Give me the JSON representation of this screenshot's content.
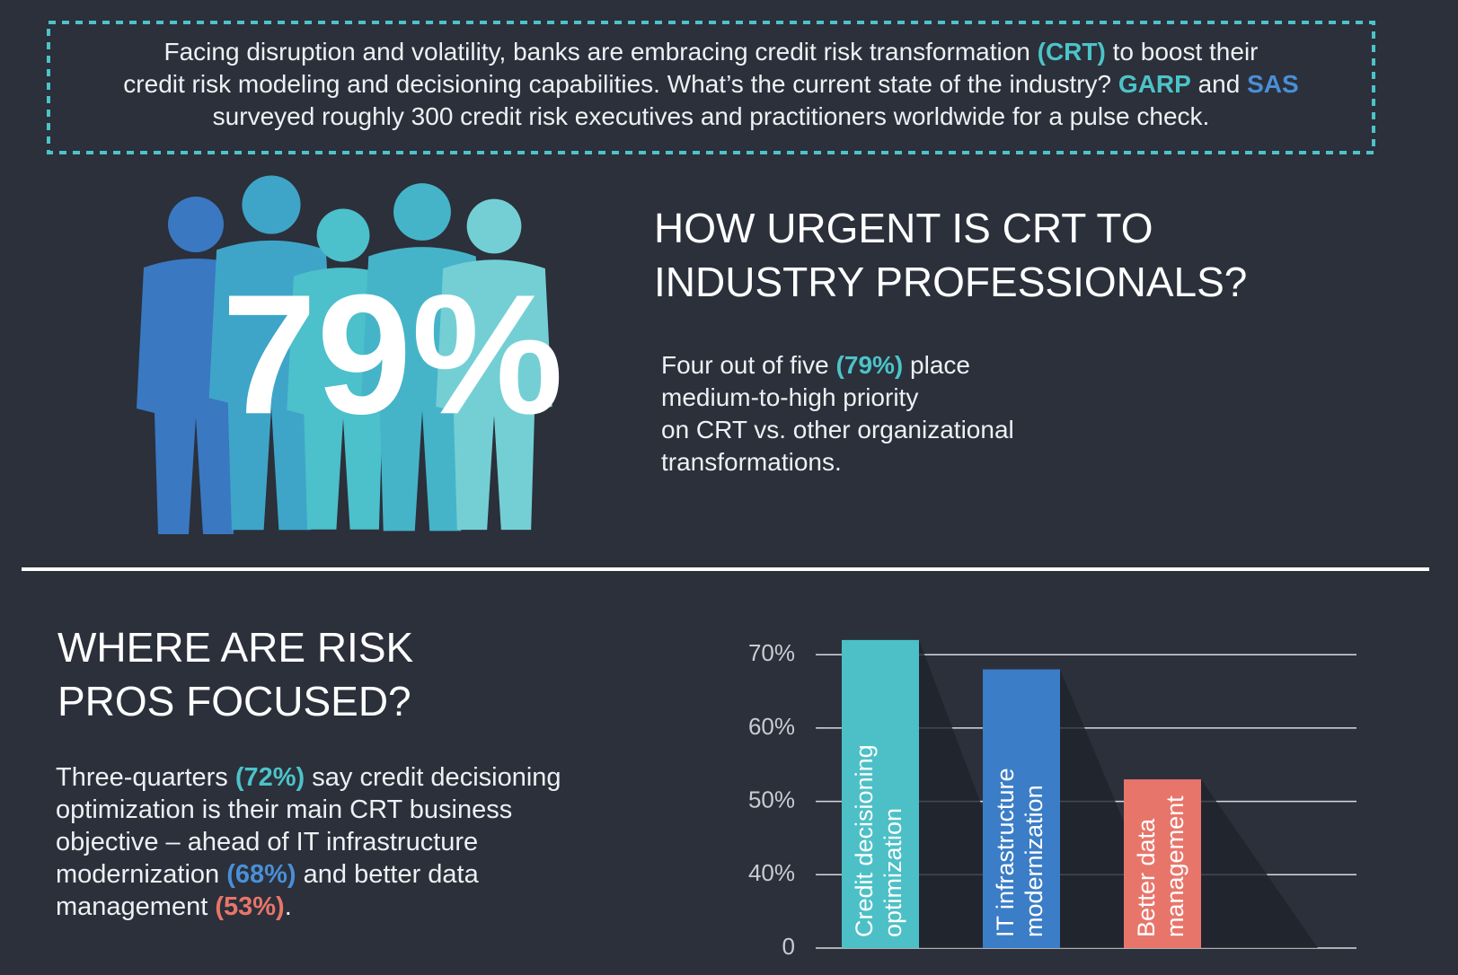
{
  "intro": {
    "lines": [
      [
        "Facing disruption and volatility, banks are embracing credit risk transformation ",
        {
          "text": "(CRT)",
          "color": "#4cc3c9"
        },
        " to boost their"
      ],
      [
        "credit risk modeling and decisioning capabilities. What’s the current state of the industry? ",
        {
          "text": "GARP",
          "color": "#4cc3c9"
        },
        " and ",
        {
          "text": "SAS",
          "color": "#4a8fd6"
        }
      ],
      [
        "surveyed roughly 300 credit risk executives and practitioners worldwide for a pulse check."
      ]
    ]
  },
  "urgency": {
    "big_number": "79%",
    "heading": [
      "HOW URGENT IS CRT TO",
      "INDUSTRY PROFESSIONALS?"
    ],
    "lines": [
      [
        "Four out of five ",
        {
          "text": "(79%)",
          "color": "#4cc3c9"
        },
        " place"
      ],
      [
        "medium-to-high priority"
      ],
      [
        "on CRT vs. other organizational"
      ],
      [
        "transformations."
      ]
    ]
  },
  "focus": {
    "heading": [
      "WHERE ARE RISK",
      "PROS FOCUSED?"
    ],
    "lines": [
      [
        "Three-quarters ",
        {
          "text": "(72%)",
          "color": "#4cc3c9"
        },
        " say credit decisioning"
      ],
      [
        "optimization is their main CRT business"
      ],
      [
        "objective – ahead of IT infrastructure"
      ],
      [
        "modernization ",
        {
          "text": "(68%)",
          "color": "#4a8fd6"
        },
        " and better data"
      ],
      [
        "management ",
        {
          "text": "(53%)",
          "color": "#e8756a"
        },
        "."
      ]
    ]
  },
  "chart_data": {
    "type": "bar",
    "categories": [
      [
        "Credit decisioning",
        "optimization"
      ],
      [
        "IT infrastructure",
        "modernization"
      ],
      [
        "Better data",
        "management"
      ]
    ],
    "values": [
      72,
      68,
      53
    ],
    "colors": [
      "#4cc0c6",
      "#3b7dc6",
      "#e8756a"
    ],
    "ylim": [
      0,
      70
    ],
    "axis_break": true,
    "yticks": [
      0,
      {
        "value": 40,
        "label": "40%"
      },
      {
        "value": 50,
        "label": "50%"
      },
      {
        "value": 60,
        "label": "60%"
      },
      {
        "value": 70,
        "label": "70%"
      }
    ],
    "grid": true
  }
}
